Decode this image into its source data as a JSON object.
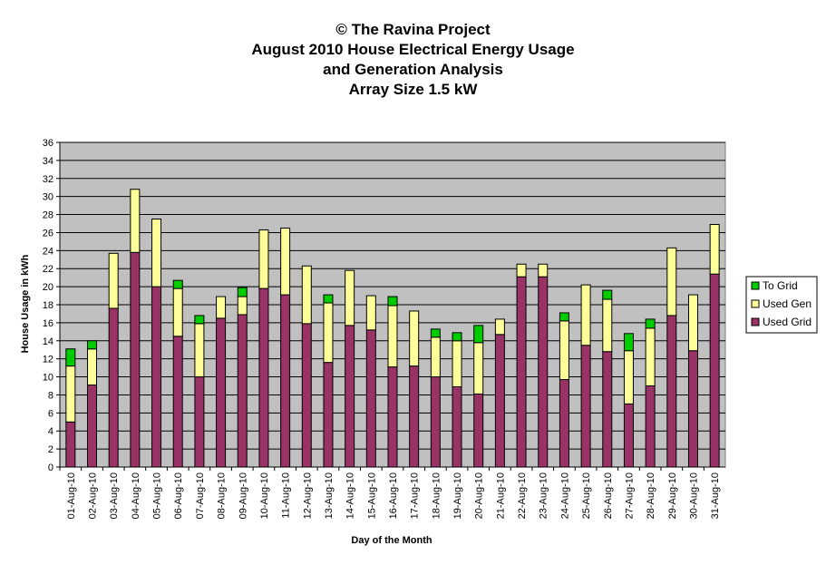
{
  "chart_data": {
    "type": "bar",
    "stacked": true,
    "title_lines": [
      "© The Ravina Project",
      "August 2010 House Electrical Energy Usage",
      "and Generation Analysis",
      "Array Size 1.5 kW"
    ],
    "xlabel": "Day of the Month",
    "ylabel": "House Usage in kWh",
    "ylim": [
      0,
      36
    ],
    "ytick_step": 2,
    "grid": true,
    "legend_position": "right",
    "categories": [
      "01-Aug-10",
      "02-Aug-10",
      "03-Aug-10",
      "04-Aug-10",
      "05-Aug-10",
      "06-Aug-10",
      "07-Aug-10",
      "08-Aug-10",
      "09-Aug-10",
      "10-Aug-10",
      "11-Aug-10",
      "12-Aug-10",
      "13-Aug-10",
      "14-Aug-10",
      "15-Aug-10",
      "16-Aug-10",
      "17-Aug-10",
      "18-Aug-10",
      "19-Aug-10",
      "20-Aug-10",
      "21-Aug-10",
      "22-Aug-10",
      "23-Aug-10",
      "24-Aug-10",
      "25-Aug-10",
      "26-Aug-10",
      "27-Aug-10",
      "28-Aug-10",
      "29-Aug-10",
      "30-Aug-10",
      "31-Aug-10"
    ],
    "series": [
      {
        "name": "Used Grid",
        "color": "#993366",
        "values": [
          5.0,
          9.1,
          17.6,
          23.8,
          20.0,
          14.5,
          10.0,
          16.5,
          16.9,
          19.8,
          19.1,
          15.9,
          11.6,
          15.7,
          15.2,
          11.1,
          11.2,
          10.0,
          8.9,
          8.1,
          14.7,
          21.1,
          21.1,
          9.7,
          13.5,
          12.8,
          7.0,
          9.0,
          16.8,
          12.9,
          21.4
        ]
      },
      {
        "name": "Used Gen",
        "color": "#FFFF99",
        "values": [
          6.2,
          4.0,
          6.1,
          7.0,
          7.5,
          5.3,
          5.9,
          2.4,
          2.0,
          6.5,
          7.4,
          6.4,
          6.6,
          6.1,
          3.8,
          6.8,
          6.1,
          4.4,
          5.1,
          5.7,
          1.7,
          1.4,
          1.4,
          6.5,
          6.7,
          5.8,
          5.9,
          6.4,
          7.5,
          6.2,
          5.5
        ]
      },
      {
        "name": "To Grid",
        "color": "#00CC00",
        "values": [
          1.9,
          0.9,
          0.0,
          0.0,
          0.0,
          0.9,
          0.9,
          0.0,
          1.0,
          0.0,
          0.0,
          0.0,
          0.9,
          0.0,
          0.0,
          1.0,
          0.0,
          0.9,
          0.9,
          1.9,
          0.0,
          0.0,
          0.0,
          0.9,
          0.0,
          1.0,
          1.9,
          1.0,
          0.0,
          0.0,
          0.0
        ]
      }
    ],
    "colors": {
      "plot_background": "#C0C0C0",
      "gridline": "#000000"
    }
  }
}
